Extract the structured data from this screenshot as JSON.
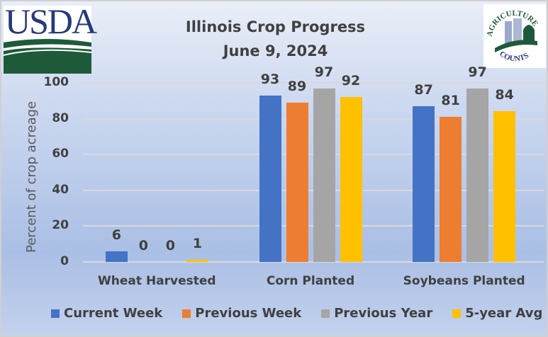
{
  "chart_data": {
    "type": "bar",
    "title": "Illinois Crop Progress",
    "subtitle": "June 9, 2024",
    "xlabel": "",
    "ylabel": "Percent of crop acreage",
    "ylim": [
      0,
      100
    ],
    "yticks": [
      0,
      20,
      40,
      60,
      80,
      100
    ],
    "grid": true,
    "legend_position": "bottom",
    "categories": [
      "Wheat Harvested",
      "Corn Planted",
      "Soybeans Planted"
    ],
    "series": [
      {
        "name": "Current Week",
        "color": "#4472c4",
        "values": [
          6,
          93,
          87
        ]
      },
      {
        "name": "Previous Week",
        "color": "#ed7d31",
        "values": [
          0,
          89,
          81
        ]
      },
      {
        "name": "Previous Year",
        "color": "#a5a5a5",
        "values": [
          0,
          97,
          97
        ]
      },
      {
        "name": "5-year Avg",
        "color": "#ffc000",
        "values": [
          1,
          92,
          84
        ]
      }
    ]
  },
  "logos": {
    "left": "USDA",
    "right_top": "AGRICULTURE",
    "right_bottom": "COUNTS"
  }
}
